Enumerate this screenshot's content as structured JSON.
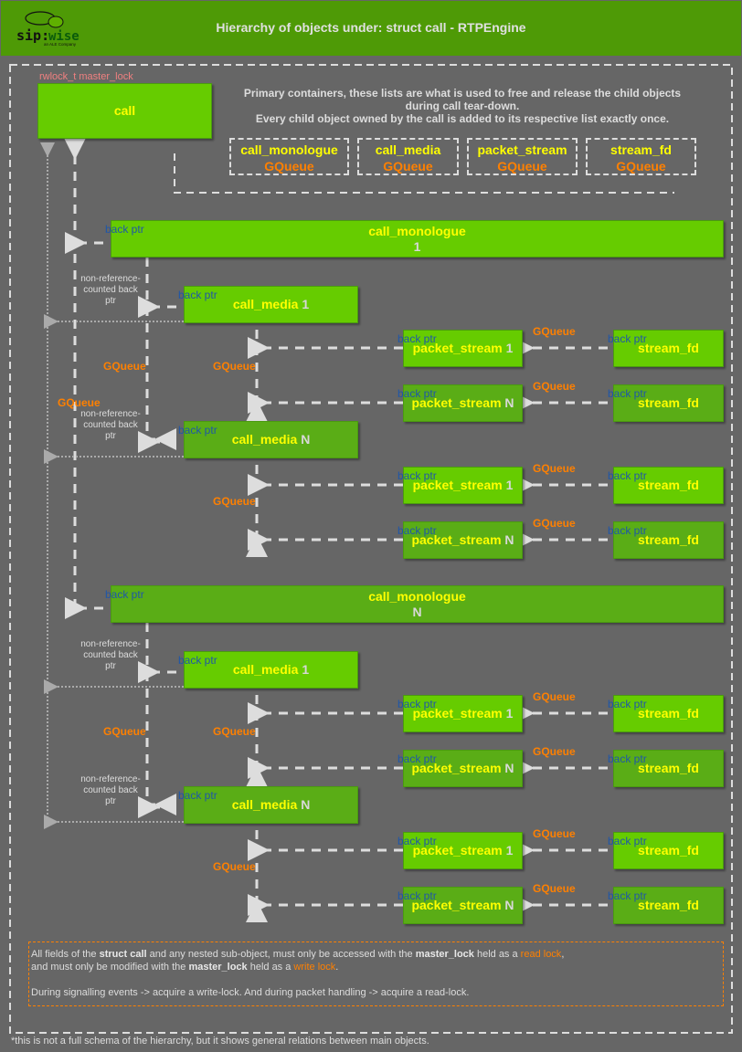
{
  "header": {
    "title": "Hierarchy of objects under: struct call - RTPEngine",
    "logo_text": "sip:wise",
    "logo_sub": "an ALE Company"
  },
  "call": {
    "lock_label": "rwlock_t master_lock",
    "name": "call"
  },
  "primary_note": {
    "line1": "Primary containers, these lists are what is used to free and release the child objects",
    "line2": "during call tear-down.",
    "line3": "Every child object owned by the call is added to its respective list exactly once."
  },
  "containers": [
    {
      "name": "call_monologue",
      "type": "GQueue"
    },
    {
      "name": "call_media",
      "type": "GQueue"
    },
    {
      "name": "packet_stream",
      "type": "GQueue"
    },
    {
      "name": "stream_fd",
      "type": "GQueue"
    }
  ],
  "labels": {
    "back_ptr": "back ptr",
    "gqueue": "GQueue",
    "non_ref": "non-reference-counted back ptr"
  },
  "groups": [
    {
      "monologue": {
        "name": "call_monologue",
        "index": "1"
      },
      "medias": [
        {
          "name": "call_media",
          "index": "1",
          "streams": [
            {
              "name": "packet_stream",
              "index": "1",
              "fd": "stream_fd"
            },
            {
              "name": "packet_stream",
              "index": "N",
              "fd": "stream_fd"
            }
          ]
        },
        {
          "name": "call_media",
          "index": "N",
          "streams": [
            {
              "name": "packet_stream",
              "index": "1",
              "fd": "stream_fd"
            },
            {
              "name": "packet_stream",
              "index": "N",
              "fd": "stream_fd"
            }
          ]
        }
      ]
    },
    {
      "monologue": {
        "name": "call_monologue",
        "index": "N"
      },
      "medias": [
        {
          "name": "call_media",
          "index": "1",
          "streams": [
            {
              "name": "packet_stream",
              "index": "1",
              "fd": "stream_fd"
            },
            {
              "name": "packet_stream",
              "index": "N",
              "fd": "stream_fd"
            }
          ]
        },
        {
          "name": "call_media",
          "index": "N",
          "streams": [
            {
              "name": "packet_stream",
              "index": "1",
              "fd": "stream_fd"
            },
            {
              "name": "packet_stream",
              "index": "N",
              "fd": "stream_fd"
            }
          ]
        }
      ]
    }
  ],
  "note": {
    "p1a": "All fields of the ",
    "p1b": "struct call",
    "p1c": " and any nested sub-object, must only be accessed with the ",
    "p1d": "master_lock",
    "p1e": " held as a ",
    "p1f": "read lock",
    "p1g": ",",
    "p2a": "and must only be modified with the ",
    "p2b": "master_lock",
    "p2c": " held as a ",
    "p2d": "write lock",
    "p2e": ".",
    "p3": "During signalling events -> acquire a write-lock. And during packet handling -> acquire a read-lock."
  },
  "footer": "*this is not a full schema of the hierarchy, but it shows general relations between main objects.",
  "colors": {
    "header": "#4e9a06",
    "box": "#66cc00",
    "box_dark": "#5aad16",
    "label": "#ffff00",
    "gqueue": "#ff8000",
    "back_ptr": "#1f57a8",
    "lock": "#f08080"
  }
}
